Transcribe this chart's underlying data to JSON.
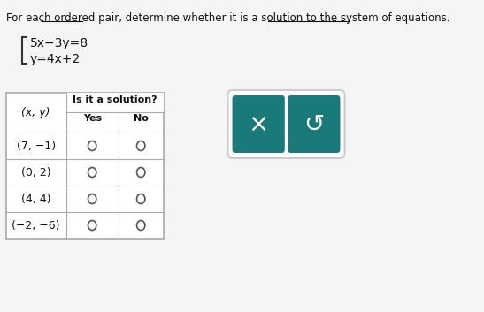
{
  "title_text": "For each ordered pair, determine whether it is a solution to the system of equations.",
  "title_underline_words": [
    "ordered pair",
    "system of equations"
  ],
  "eq1": "5x−3y=8",
  "eq2": "y=4x+2",
  "table_header_col0": "(x, y)",
  "table_header_merged": "Is it a solution?",
  "table_header_yes": "Yes",
  "table_header_no": "No",
  "rows": [
    "(7, −1)",
    "(0, 2)",
    "(4, 4)",
    "(−2, −6)"
  ],
  "bg_color": "#f0f0f0",
  "table_bg": "#ffffff",
  "teal_color": "#1a7a7a",
  "button_x_label": "×",
  "button_undo_label": "↺",
  "circle_color": "#555555",
  "header_line_color": "#999999",
  "table_border_color": "#aaaaaa"
}
